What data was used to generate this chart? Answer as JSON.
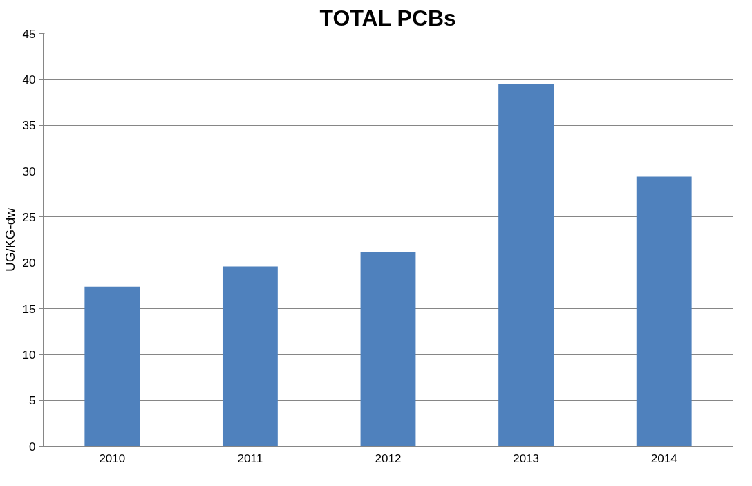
{
  "chart_data": {
    "type": "bar",
    "title": "TOTAL PCBs",
    "ylabel": "UG/KG-dw",
    "categories": [
      "2010",
      "2011",
      "2012",
      "2013",
      "2014"
    ],
    "values": [
      17.4,
      19.6,
      21.2,
      39.5,
      29.4
    ],
    "color": "#4f81bd",
    "ylim": [
      0,
      45
    ],
    "yticks": [
      0,
      5,
      10,
      15,
      20,
      25,
      30,
      35,
      40,
      45
    ],
    "grid": "y"
  }
}
